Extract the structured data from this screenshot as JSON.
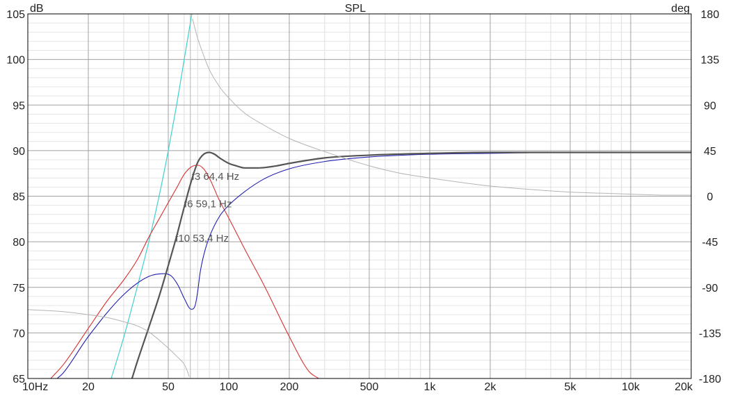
{
  "chart_data": {
    "type": "line",
    "title": "SPL",
    "ylabel": "dB",
    "y2label": "deg",
    "xscale": "log",
    "xlim": [
      10,
      20000
    ],
    "ylim": [
      65,
      105
    ],
    "y2lim": [
      -180,
      180
    ],
    "grid": true,
    "x_ticks": [
      {
        "value": 10,
        "label": "10Hz"
      },
      {
        "value": 20,
        "label": "20"
      },
      {
        "value": 50,
        "label": "50"
      },
      {
        "value": 100,
        "label": "100"
      },
      {
        "value": 200,
        "label": "200"
      },
      {
        "value": 500,
        "label": "500"
      },
      {
        "value": 1000,
        "label": "1k"
      },
      {
        "value": 2000,
        "label": "2k"
      },
      {
        "value": 5000,
        "label": "5k"
      },
      {
        "value": 10000,
        "label": "10k"
      },
      {
        "value": 20000,
        "label": "20k"
      }
    ],
    "y_ticks": [
      {
        "value": 65,
        "label": "65"
      },
      {
        "value": 70,
        "label": "70"
      },
      {
        "value": 75,
        "label": "75"
      },
      {
        "value": 80,
        "label": "80"
      },
      {
        "value": 85,
        "label": "85"
      },
      {
        "value": 90,
        "label": "90"
      },
      {
        "value": 95,
        "label": "95"
      },
      {
        "value": 100,
        "label": "100"
      },
      {
        "value": 105,
        "label": "105"
      }
    ],
    "y2_ticks": [
      {
        "value": -180,
        "label": "-180"
      },
      {
        "value": -135,
        "label": "-135"
      },
      {
        "value": -90,
        "label": "-90"
      },
      {
        "value": -45,
        "label": "-45"
      },
      {
        "value": 0,
        "label": "0"
      },
      {
        "value": 45,
        "label": "45"
      },
      {
        "value": 90,
        "label": "90"
      },
      {
        "value": 135,
        "label": "135"
      },
      {
        "value": 180,
        "label": "180"
      }
    ],
    "series": [
      {
        "key": "cyan",
        "axis": "y",
        "color": "#40d0d0",
        "width": 1.2,
        "x": [
          26,
          30,
          35,
          40,
          45,
          50,
          55,
          60,
          65.5
        ],
        "y": [
          65,
          69.5,
          75,
          80,
          85,
          90,
          95,
          100,
          105
        ]
      },
      {
        "key": "red",
        "axis": "y",
        "color": "#d83030",
        "width": 1.1,
        "x": [
          13,
          15,
          20,
          25,
          30,
          35,
          40,
          45,
          50,
          55,
          60,
          65,
          70,
          75,
          80,
          90,
          100,
          120,
          150,
          200,
          250,
          280
        ],
        "y": [
          65,
          66.5,
          70.5,
          73.6,
          75.8,
          78.0,
          80.5,
          82.5,
          84.3,
          85.9,
          87.4,
          88.2,
          88.4,
          88.0,
          87.0,
          84.5,
          82.6,
          79.2,
          75.2,
          69.6,
          65.8,
          65
        ]
      },
      {
        "key": "blue",
        "axis": "y",
        "color": "#2020b0",
        "width": 1.1,
        "x": [
          14,
          15,
          20,
          30,
          40,
          48,
          52,
          56,
          60,
          65,
          68,
          70,
          72,
          75,
          80,
          90,
          100,
          120,
          150,
          200,
          300,
          500,
          1000,
          2000,
          5000,
          10000,
          20000
        ],
        "y": [
          65,
          65.6,
          69.6,
          74.2,
          76.2,
          76.5,
          76.2,
          75.2,
          73.8,
          72.6,
          73.0,
          74.5,
          76.6,
          78.5,
          80.5,
          82.8,
          84.0,
          85.5,
          86.9,
          88.0,
          88.8,
          89.3,
          89.6,
          89.7,
          89.8,
          89.8,
          89.8
        ]
      },
      {
        "key": "total",
        "axis": "y",
        "color": "#555555",
        "width": 2.2,
        "x": [
          33,
          35,
          40,
          45,
          50,
          55,
          60,
          65,
          70,
          75,
          80,
          85,
          90,
          100,
          110,
          120,
          140,
          170,
          200,
          300,
          500,
          1000,
          2000,
          5000,
          10000,
          20000
        ],
        "y": [
          65,
          66.8,
          70.6,
          74.0,
          77.4,
          80.6,
          83.8,
          86.6,
          88.7,
          89.6,
          89.8,
          89.6,
          89.2,
          88.6,
          88.3,
          88.1,
          88.1,
          88.3,
          88.6,
          89.2,
          89.5,
          89.7,
          89.8,
          89.8,
          89.8,
          89.8
        ]
      },
      {
        "key": "phase",
        "axis": "y2",
        "color": "#b4b4b4",
        "width": 1.0,
        "x": [
          10,
          15,
          20,
          25,
          30,
          35,
          40,
          45,
          50,
          55,
          60,
          62,
          63.5
        ],
        "y": [
          -112,
          -114,
          -117,
          -120,
          -124,
          -128,
          -134,
          -142,
          -150,
          -158,
          -166,
          -172,
          -178
        ]
      },
      {
        "key": "phase",
        "axis": "y2",
        "color": "#b4b4b4",
        "width": 1.0,
        "x": [
          66,
          70,
          75,
          80,
          90,
          100,
          120,
          150,
          200,
          300,
          500,
          700,
          1000,
          1500,
          2000,
          3000,
          5000,
          7000,
          10000,
          15000,
          20000
        ],
        "y": [
          175,
          156,
          139,
          125,
          108,
          97,
          82,
          70,
          57,
          44,
          30,
          23,
          18,
          13,
          10,
          7,
          4,
          3,
          2,
          1,
          1
        ]
      }
    ],
    "markers": [
      {
        "x": 64.4,
        "color": "#b4b4b4"
      }
    ],
    "annotations": [
      {
        "text": "f3 64,4 Hz",
        "x": 64.4,
        "y": 86.8
      },
      {
        "text": "f6 59,1 Hz",
        "x": 59.1,
        "y": 83.8
      },
      {
        "text": "f10 53,4 Hz",
        "x": 53.4,
        "y": 80.0
      }
    ]
  }
}
